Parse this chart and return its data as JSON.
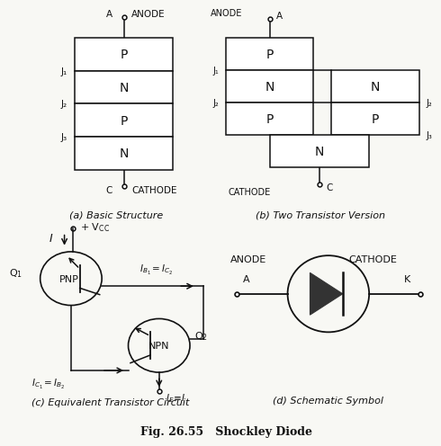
{
  "title": "Fig. 26.55   Shockley Diode",
  "bg_color": "#f8f8f4",
  "text_color": "#111111",
  "sub_captions": [
    "(a) Basic Structure",
    "(b) Two Transistor Version",
    "(c) Equivalent Transistor Circuit",
    "(d) Schematic Symbol"
  ],
  "layers_a": [
    "P",
    "N",
    "P",
    "N"
  ],
  "junctions_a": [
    "J₁",
    "J₂",
    "J₃"
  ],
  "junctions_b": [
    "J₁",
    "J₂",
    "J₃"
  ]
}
